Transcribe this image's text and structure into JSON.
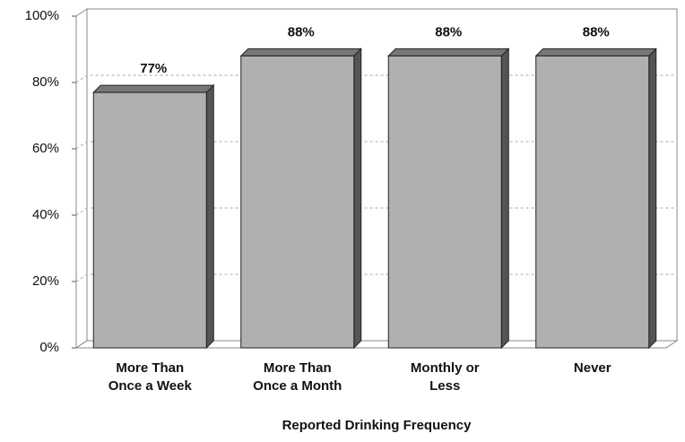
{
  "chart_data": {
    "type": "bar3d",
    "categories": [
      "More Than\nOnce a Week",
      "More Than\nOnce a Month",
      "Monthly or\nLess",
      "Never"
    ],
    "values": [
      77,
      88,
      88,
      88
    ],
    "value_labels": [
      "77%",
      "88%",
      "88%",
      "88%"
    ],
    "color": "#b0b0b0",
    "xlabel": "Reported Drinking Frequency",
    "ylim": [
      0,
      100
    ],
    "yticks": [
      {
        "value": 0,
        "label": "0%"
      },
      {
        "value": 20,
        "label": "20%"
      },
      {
        "value": 40,
        "label": "40%"
      },
      {
        "value": 60,
        "label": "60%"
      },
      {
        "value": 80,
        "label": "80%"
      },
      {
        "value": 100,
        "label": "100%"
      }
    ],
    "grid": true
  }
}
